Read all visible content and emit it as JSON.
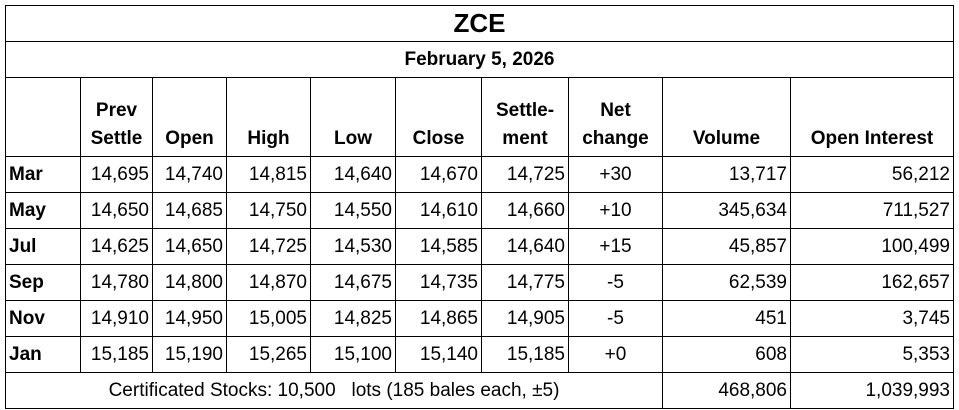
{
  "header": {
    "title": "ZCE",
    "date": "February 5, 2026"
  },
  "table": {
    "columns": [
      [
        ""
      ],
      [
        "Prev",
        "Settle"
      ],
      [
        "Open"
      ],
      [
        "High"
      ],
      [
        "Low"
      ],
      [
        "Close"
      ],
      [
        "Settle-",
        "ment"
      ],
      [
        "Net",
        "change"
      ],
      [
        "Volume"
      ],
      [
        "Open Interest"
      ]
    ],
    "rows": [
      [
        "Mar",
        "14,695",
        "14,740",
        "14,815",
        "14,640",
        "14,670",
        "14,725",
        "+30",
        "13,717",
        "56,212"
      ],
      [
        "May",
        "14,650",
        "14,685",
        "14,750",
        "14,550",
        "14,610",
        "14,660",
        "+10",
        "345,634",
        "711,527"
      ],
      [
        "Jul",
        "14,625",
        "14,650",
        "14,725",
        "14,530",
        "14,585",
        "14,640",
        "+15",
        "45,857",
        "100,499"
      ],
      [
        "Sep",
        "14,780",
        "14,800",
        "14,870",
        "14,675",
        "14,735",
        "14,775",
        "-5",
        "62,539",
        "162,657"
      ],
      [
        "Nov",
        "14,910",
        "14,950",
        "15,005",
        "14,825",
        "14,865",
        "14,905",
        "-5",
        "451",
        "3,745"
      ],
      [
        "Jan",
        "15,185",
        "15,190",
        "15,265",
        "15,100",
        "15,140",
        "15,185",
        "+0",
        "608",
        "5,353"
      ]
    ],
    "footer": {
      "note": "Certificated Stocks: 10,500   lots (185 bales each, ±5)",
      "volume_total": "468,806",
      "open_interest_total": "1,039,993"
    }
  }
}
